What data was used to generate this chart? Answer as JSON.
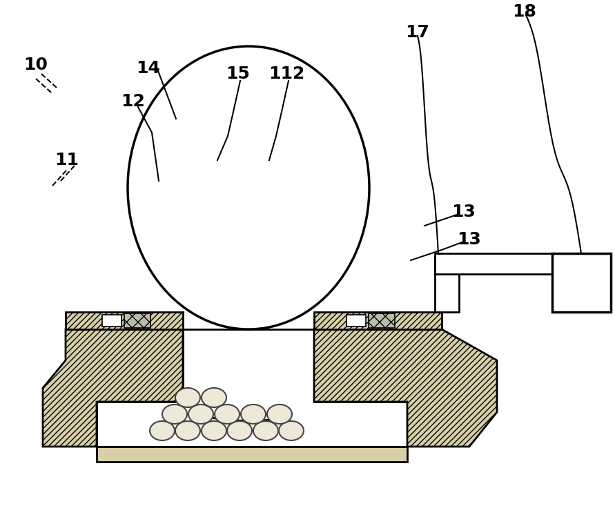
{
  "bg_color": "#ffffff",
  "line_color": "#000000",
  "figsize": [
    8.91,
    7.62
  ],
  "dpi": 100,
  "hatch_fill": "#d8cfa8",
  "white": "#ffffff"
}
